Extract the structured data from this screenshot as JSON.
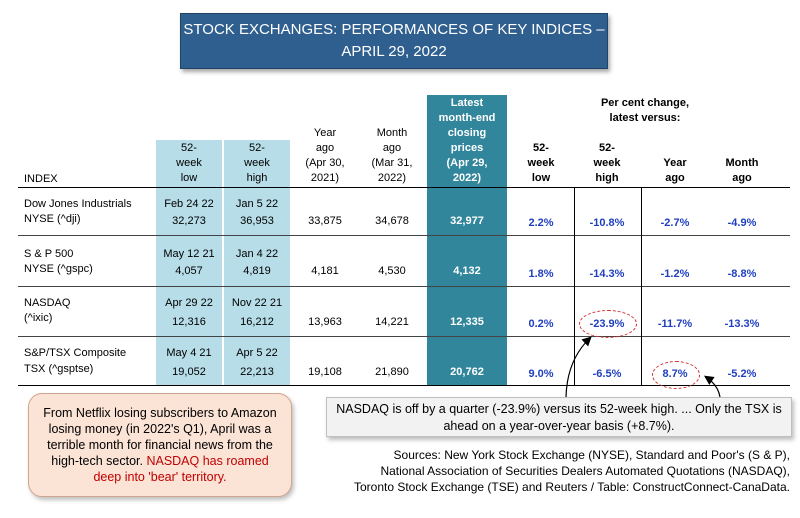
{
  "title": {
    "line1": "STOCK EXCHANGES: PERFORMANCES OF KEY INDICES –",
    "line2": "APRIL 29, 2022"
  },
  "headers": {
    "index": "INDEX",
    "low52": [
      "52-",
      "week",
      "low"
    ],
    "high52": [
      "52-",
      "week",
      "high"
    ],
    "year_ago": [
      "Year",
      "ago",
      "(Apr 30,",
      "2021)"
    ],
    "month_ago": [
      "Month",
      "ago",
      "(Mar 31,",
      "2022)"
    ],
    "month_end": [
      "Latest",
      "month-end",
      "closing",
      "prices",
      "(Apr 29,",
      "2022)"
    ],
    "pct_title": [
      "Per cent change,",
      "latest versus:"
    ],
    "pct_low": [
      "52-",
      "week",
      "low"
    ],
    "pct_high": [
      "52-",
      "week",
      "high"
    ],
    "pct_year": [
      "Year",
      "ago"
    ],
    "pct_month": [
      "Month",
      "ago"
    ]
  },
  "rows": [
    {
      "name1": "Dow Jones Industrials",
      "name2": "NYSE (^dji)",
      "low_date": "Feb 24 22",
      "low_val": "32,273",
      "high_date": "Jan 5 22",
      "high_val": "36,953",
      "year_ago": "33,875",
      "month_ago": "34,678",
      "latest": "32,977",
      "pct_low": "2.2%",
      "pct_high": "-10.8%",
      "pct_year": "-2.7%",
      "pct_month": "-4.9%"
    },
    {
      "name1": "S & P 500",
      "name2": "NYSE (^gspc)",
      "low_date": "May 12 21",
      "low_val": "4,057",
      "high_date": "Jan 4 22",
      "high_val": "4,819",
      "year_ago": "4,181",
      "month_ago": "4,530",
      "latest": "4,132",
      "pct_low": "1.8%",
      "pct_high": "-14.3%",
      "pct_year": "-1.2%",
      "pct_month": "-8.8%"
    },
    {
      "name1": "NASDAQ",
      "name2": "(^ixic)",
      "low_date": "Apr 29 22",
      "low_val": "12,316",
      "high_date": "Nov 22 21",
      "high_val": "16,212",
      "year_ago": "13,963",
      "month_ago": "14,221",
      "latest": "12,335",
      "pct_low": "0.2%",
      "pct_high": "-23.9%",
      "pct_year": "-11.7%",
      "pct_month": "-13.3%"
    },
    {
      "name1": "S&P/TSX Composite",
      "name2": "TSX (^gsptse)",
      "low_date": "May 4 21",
      "low_val": "19,052",
      "high_date": "Apr 5 22",
      "high_val": "22,213",
      "year_ago": "19,108",
      "month_ago": "21,890",
      "latest": "20,762",
      "pct_low": "9.0%",
      "pct_high": "-6.5%",
      "pct_year": "8.7%",
      "pct_month": "-5.2%"
    }
  ],
  "note_left": {
    "text": "From Netflix losing subscribers to Amazon losing money (in 2022's Q1), April was a terrible month for financial news from the high-tech sector.",
    "red": "NASDAQ has roamed deep into 'bear' territory."
  },
  "note_right": "NASDAQ is off by a quarter (-23.9%) versus its 52-week high. ... Only the TSX is ahead on a year-over-year basis (+8.7%).",
  "sources": [
    "Sources: New York Stock Exchange (NYSE), Standard and Poor's (S & P),",
    "National Association of Securities Dealers Automated Quotations (NASDAQ),",
    "Toronto Stock Exchange (TSE) and Reuters / Table: ConstructConnect-CanaData."
  ],
  "colors": {
    "title_bg": "#2f5f8f",
    "light_blue": "#b7dde8",
    "teal": "#31869b",
    "pct_blue": "#1f3fbf",
    "red": "#c00000"
  }
}
